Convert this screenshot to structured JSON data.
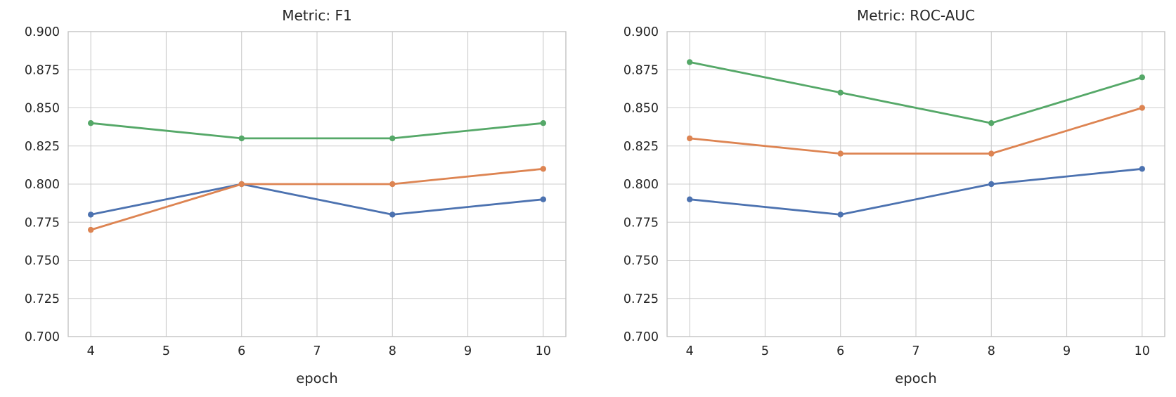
{
  "figure": {
    "background": "#ffffff",
    "grid_color": "#cccccc",
    "spine_color": "#c3c3c3",
    "text_color": "#262626"
  },
  "chart_data": [
    {
      "type": "line",
      "title": "Metric: F1",
      "xlabel": "epoch",
      "ylabel": "",
      "x": [
        4,
        6,
        8,
        10
      ],
      "xticks": [
        4,
        5,
        6,
        7,
        8,
        9,
        10
      ],
      "yticks": [
        0.7,
        0.725,
        0.75,
        0.775,
        0.8,
        0.825,
        0.85,
        0.875,
        0.9
      ],
      "xlim": [
        3.7,
        10.3
      ],
      "ylim": [
        0.7,
        0.9
      ],
      "grid": true,
      "legend": "none",
      "marker": "circle",
      "series": [
        {
          "name": "series-blue",
          "color": "#4C72B0",
          "values": [
            0.78,
            0.8,
            0.78,
            0.79
          ]
        },
        {
          "name": "series-orange",
          "color": "#DD8452",
          "values": [
            0.77,
            0.8,
            0.8,
            0.81
          ]
        },
        {
          "name": "series-green",
          "color": "#55A868",
          "values": [
            0.84,
            0.83,
            0.83,
            0.84
          ]
        }
      ]
    },
    {
      "type": "line",
      "title": "Metric: ROC-AUC",
      "xlabel": "epoch",
      "ylabel": "",
      "x": [
        4,
        6,
        8,
        10
      ],
      "xticks": [
        4,
        5,
        6,
        7,
        8,
        9,
        10
      ],
      "yticks": [
        0.7,
        0.725,
        0.75,
        0.775,
        0.8,
        0.825,
        0.85,
        0.875,
        0.9
      ],
      "xlim": [
        3.7,
        10.3
      ],
      "ylim": [
        0.7,
        0.9
      ],
      "grid": true,
      "legend": "none",
      "marker": "circle",
      "series": [
        {
          "name": "series-blue",
          "color": "#4C72B0",
          "values": [
            0.79,
            0.78,
            0.8,
            0.81
          ]
        },
        {
          "name": "series-orange",
          "color": "#DD8452",
          "values": [
            0.83,
            0.82,
            0.82,
            0.85
          ]
        },
        {
          "name": "series-green",
          "color": "#55A868",
          "values": [
            0.88,
            0.86,
            0.84,
            0.87
          ]
        }
      ]
    }
  ]
}
